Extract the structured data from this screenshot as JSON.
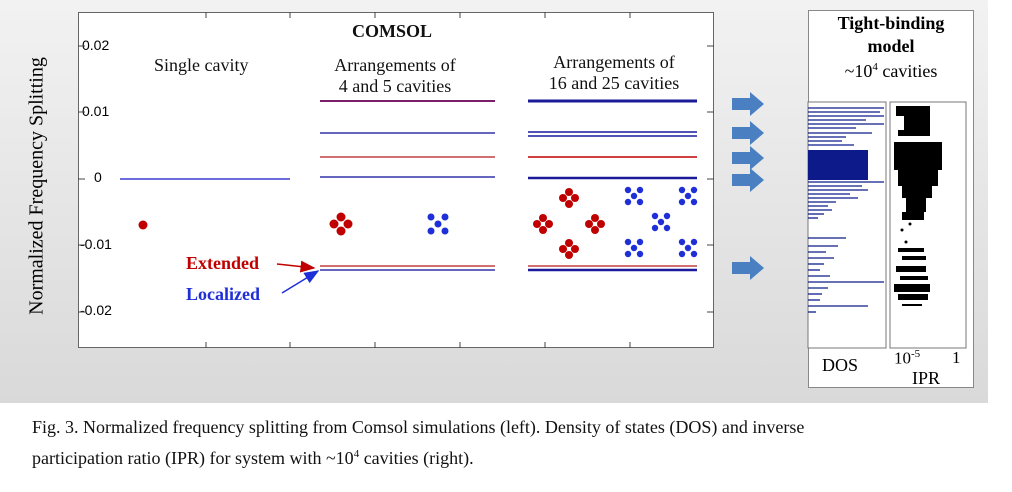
{
  "ylabel": "Normalized Frequency Splitting",
  "yticks": [
    "0.02",
    "0.01",
    "0",
    "-0.01",
    "-0.02"
  ],
  "comsol_title": "COMSOL",
  "col1_title": "Single cavity",
  "col2_title_l1": "Arrangements of",
  "col2_title_l2": "4 and 5 cavities",
  "col3_title_l1": "Arrangements of",
  "col3_title_l2": "16 and 25 cavities",
  "label_extended": "Extended",
  "label_localized": "Localized",
  "tb_title_l1": "Tight-binding",
  "tb_title_l2": "model",
  "tb_title_l3": "~10",
  "tb_title_l3_sup": "4",
  "tb_title_l3_tail": " cavities",
  "dos_label": "DOS",
  "ipr_tick_left": "10",
  "ipr_tick_left_sup": "-5",
  "ipr_tick_right": "1",
  "ipr_label": "IPR",
  "caption_l1": "Fig. 3. Normalized frequency splitting from Comsol simulations (left).  Density of states (DOS) and inverse",
  "caption_l2_a": "participation ratio (IPR) for system with ~10",
  "caption_l2_sup": "4",
  "caption_l2_b": " cavities (right).",
  "colors": {
    "extended": "#c00000",
    "localized": "#1f2fd8",
    "navy": "#1a237e",
    "arrow": "#4a7fc1"
  },
  "chart_data": {
    "type": "scatter",
    "ylabel": "Normalized Frequency Splitting",
    "ylim": [
      -0.025,
      0.025
    ],
    "yticks": [
      0.02,
      0.01,
      0,
      -0.01,
      -0.02
    ],
    "series": [
      {
        "name": "Single cavity",
        "levels": [
          0.0
        ]
      },
      {
        "name": "Arrangements of 4 and 5 cavities",
        "levels": [
          0.012,
          0.007,
          0.0033,
          0.0003,
          -0.013,
          -0.0135
        ]
      },
      {
        "name": "Arrangements of 16 and 25 cavities",
        "levels": [
          0.012,
          0.0072,
          0.0068,
          0.0033,
          -0.0005,
          -0.013,
          -0.0135,
          -0.0138
        ]
      }
    ],
    "annotations": [
      "Extended",
      "Localized"
    ]
  }
}
